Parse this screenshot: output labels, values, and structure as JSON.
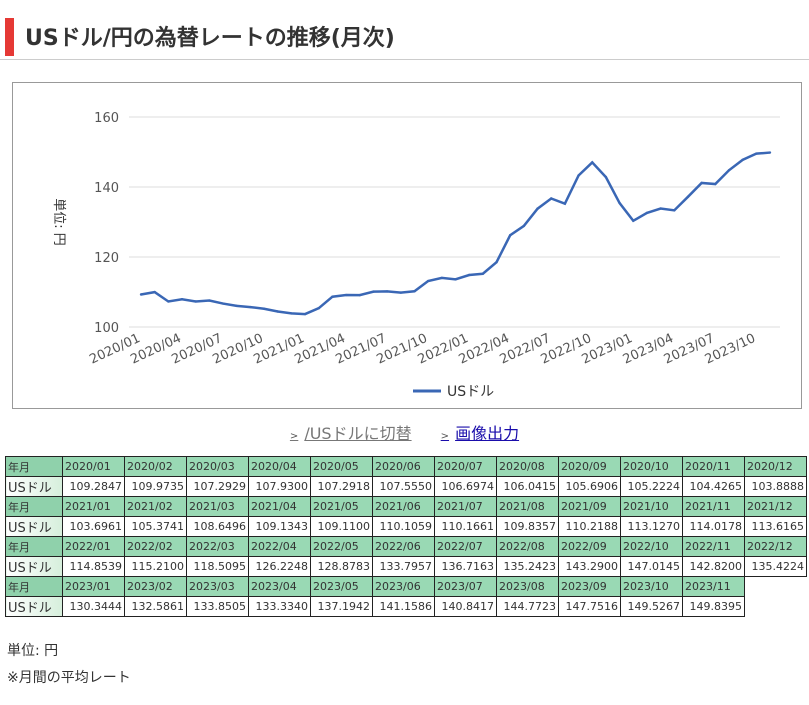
{
  "title": "USドル/円の為替レートの推移(月次)",
  "links": {
    "switch": "/USドルに切替",
    "export": "画像出力"
  },
  "table": {
    "header_label": "年月",
    "row_label": "USドル"
  },
  "footer": {
    "unit": "単位: 円",
    "note": "※月間の平均レート"
  },
  "chart_data": {
    "type": "line",
    "ylabel": "単位: 円",
    "ylim": [
      100,
      160
    ],
    "yticks": [
      100,
      120,
      140,
      160
    ],
    "grid": true,
    "legend": "bottom",
    "xtick_labels": [
      "2020/01",
      "2020/04",
      "2020/07",
      "2020/10",
      "2021/01",
      "2021/04",
      "2021/07",
      "2021/10",
      "2022/01",
      "2022/04",
      "2022/07",
      "2022/10",
      "2023/01",
      "2023/04",
      "2023/07",
      "2023/10"
    ],
    "color": "#3a67b5",
    "categories": [
      "2020/01",
      "2020/02",
      "2020/03",
      "2020/04",
      "2020/05",
      "2020/06",
      "2020/07",
      "2020/08",
      "2020/09",
      "2020/10",
      "2020/11",
      "2020/12",
      "2021/01",
      "2021/02",
      "2021/03",
      "2021/04",
      "2021/05",
      "2021/06",
      "2021/07",
      "2021/08",
      "2021/09",
      "2021/10",
      "2021/11",
      "2021/12",
      "2022/01",
      "2022/02",
      "2022/03",
      "2022/04",
      "2022/05",
      "2022/06",
      "2022/07",
      "2022/08",
      "2022/09",
      "2022/10",
      "2022/11",
      "2022/12",
      "2023/01",
      "2023/02",
      "2023/03",
      "2023/04",
      "2023/05",
      "2023/06",
      "2023/07",
      "2023/08",
      "2023/09",
      "2023/10",
      "2023/11"
    ],
    "series": [
      {
        "name": "USドル",
        "values": [
          "109.2847",
          "109.9735",
          "107.2929",
          "107.9300",
          "107.2918",
          "107.5550",
          "106.6974",
          "106.0415",
          "105.6906",
          "105.2224",
          "104.4265",
          "103.8888",
          "103.6961",
          "105.3741",
          "108.6496",
          "109.1343",
          "109.1100",
          "110.1059",
          "110.1661",
          "109.8357",
          "110.2188",
          "113.1270",
          "114.0178",
          "113.6165",
          "114.8539",
          "115.2100",
          "118.5095",
          "126.2248",
          "128.8783",
          "133.7957",
          "136.7163",
          "135.2423",
          "143.2900",
          "147.0145",
          "142.8200",
          "135.4224",
          "130.3444",
          "132.5861",
          "133.8505",
          "133.3340",
          "137.1942",
          "141.1586",
          "140.8417",
          "144.7723",
          "147.7516",
          "149.5267",
          "149.8395"
        ]
      }
    ]
  }
}
